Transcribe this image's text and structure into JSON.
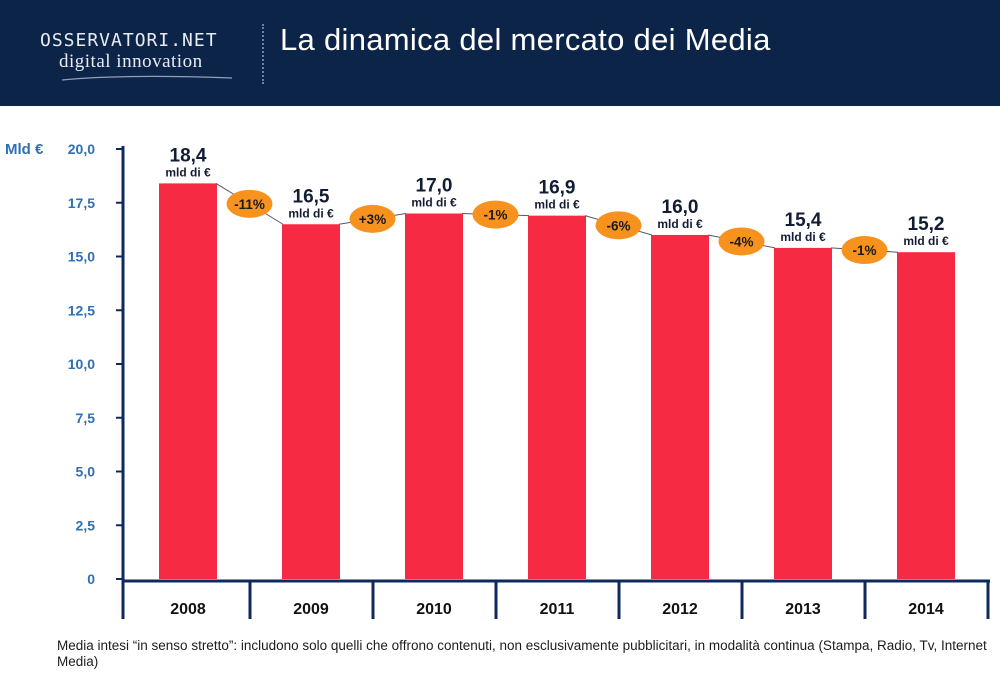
{
  "header": {
    "logo_line1": "OSSERVATORI.NET",
    "logo_line2": "digital innovation",
    "title": "La dinamica del mercato dei Media"
  },
  "colors": {
    "header_bg": "#0c2447",
    "bar": "#f72a43",
    "axis": "#0e2a5c",
    "ytick": "#2e6fb5",
    "badge": "#f7921e"
  },
  "chart_data": {
    "type": "bar",
    "categories": [
      "2008",
      "2009",
      "2010",
      "2011",
      "2012",
      "2013",
      "2014"
    ],
    "values": [
      18.4,
      16.5,
      17.0,
      16.9,
      16.0,
      15.4,
      15.2
    ],
    "value_labels": [
      "18,4",
      "16,5",
      "17,0",
      "16,9",
      "16,0",
      "15,4",
      "15,2"
    ],
    "value_unit": "mld di €",
    "ylabel": "Mld €",
    "ylim": [
      0,
      20
    ],
    "yticks": [
      0,
      2.5,
      5,
      7.5,
      10,
      12.5,
      15,
      17.5,
      20
    ],
    "ytick_labels": [
      "0",
      "2,5",
      "5,0",
      "7,5",
      "10,0",
      "12,5",
      "15,0",
      "17,5",
      "20,0"
    ],
    "changes": [
      "-11%",
      "+3%",
      "-1%",
      "-6%",
      "-4%",
      "-1%"
    ],
    "grid": false
  },
  "footnote": "Media intesi “in senso stretto”: includono solo quelli che offrono contenuti, non esclusivamente pubblicitari, in modalità continua (Stampa, Radio, Tv, Internet Media)"
}
